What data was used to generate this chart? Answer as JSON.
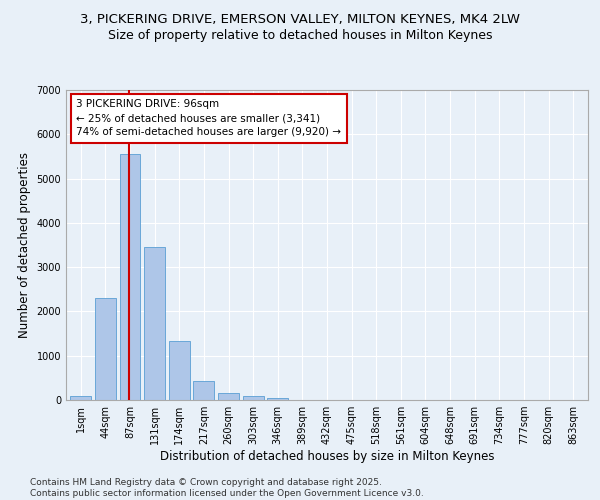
{
  "title_line1": "3, PICKERING DRIVE, EMERSON VALLEY, MILTON KEYNES, MK4 2LW",
  "title_line2": "Size of property relative to detached houses in Milton Keynes",
  "xlabel": "Distribution of detached houses by size in Milton Keynes",
  "ylabel": "Number of detached properties",
  "categories": [
    "1sqm",
    "44sqm",
    "87sqm",
    "131sqm",
    "174sqm",
    "217sqm",
    "260sqm",
    "303sqm",
    "346sqm",
    "389sqm",
    "432sqm",
    "475sqm",
    "518sqm",
    "561sqm",
    "604sqm",
    "648sqm",
    "691sqm",
    "734sqm",
    "777sqm",
    "820sqm",
    "863sqm"
  ],
  "values": [
    90,
    2310,
    5560,
    3460,
    1330,
    430,
    165,
    80,
    45,
    0,
    0,
    0,
    0,
    0,
    0,
    0,
    0,
    0,
    0,
    0,
    0
  ],
  "bar_color": "#aec6e8",
  "bar_edge_color": "#5a9fd4",
  "vline_color": "#cc0000",
  "annotation_text": "3 PICKERING DRIVE: 96sqm\n← 25% of detached houses are smaller (3,341)\n74% of semi-detached houses are larger (9,920) →",
  "annotation_box_color": "#ffffff",
  "annotation_box_edge": "#cc0000",
  "ylim": [
    0,
    7000
  ],
  "yticks": [
    0,
    1000,
    2000,
    3000,
    4000,
    5000,
    6000,
    7000
  ],
  "bg_color": "#e8f0f8",
  "plot_bg_color": "#e8f0f8",
  "footer_text": "Contains HM Land Registry data © Crown copyright and database right 2025.\nContains public sector information licensed under the Open Government Licence v3.0.",
  "title_fontsize": 9.5,
  "subtitle_fontsize": 9,
  "axis_label_fontsize": 8.5,
  "tick_fontsize": 7,
  "annotation_fontsize": 7.5,
  "footer_fontsize": 6.5
}
